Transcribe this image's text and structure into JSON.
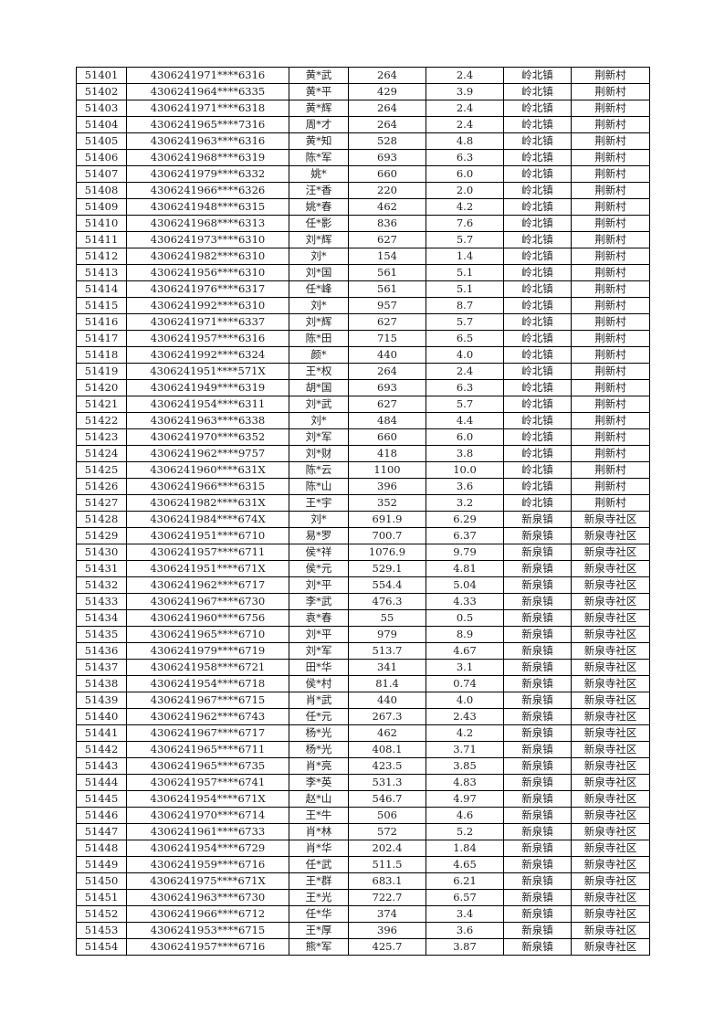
{
  "table": {
    "rows": [
      [
        "51401",
        "4306241971****6316",
        "黄*武",
        "264",
        "2.4",
        "岭北镇",
        "荆新村"
      ],
      [
        "51402",
        "4306241964****6335",
        "黄*平",
        "429",
        "3.9",
        "岭北镇",
        "荆新村"
      ],
      [
        "51403",
        "4306241971****6318",
        "黄*辉",
        "264",
        "2.4",
        "岭北镇",
        "荆新村"
      ],
      [
        "51404",
        "4306241965****7316",
        "周*才",
        "264",
        "2.4",
        "岭北镇",
        "荆新村"
      ],
      [
        "51405",
        "4306241963****6316",
        "黄*知",
        "528",
        "4.8",
        "岭北镇",
        "荆新村"
      ],
      [
        "51406",
        "4306241968****6319",
        "陈*军",
        "693",
        "6.3",
        "岭北镇",
        "荆新村"
      ],
      [
        "51407",
        "4306241979****6332",
        "姚*",
        "660",
        "6.0",
        "岭北镇",
        "荆新村"
      ],
      [
        "51408",
        "4306241966****6326",
        "汪*香",
        "220",
        "2.0",
        "岭北镇",
        "荆新村"
      ],
      [
        "51409",
        "4306241948****6315",
        "姚*春",
        "462",
        "4.2",
        "岭北镇",
        "荆新村"
      ],
      [
        "51410",
        "4306241968****6313",
        "任*影",
        "836",
        "7.6",
        "岭北镇",
        "荆新村"
      ],
      [
        "51411",
        "4306241973****6310",
        "刘*辉",
        "627",
        "5.7",
        "岭北镇",
        "荆新村"
      ],
      [
        "51412",
        "4306241982****6310",
        "刘*",
        "154",
        "1.4",
        "岭北镇",
        "荆新村"
      ],
      [
        "51413",
        "4306241956****6310",
        "刘*国",
        "561",
        "5.1",
        "岭北镇",
        "荆新村"
      ],
      [
        "51414",
        "4306241976****6317",
        "任*峰",
        "561",
        "5.1",
        "岭北镇",
        "荆新村"
      ],
      [
        "51415",
        "4306241992****6310",
        "刘*",
        "957",
        "8.7",
        "岭北镇",
        "荆新村"
      ],
      [
        "51416",
        "4306241971****6337",
        "刘*辉",
        "627",
        "5.7",
        "岭北镇",
        "荆新村"
      ],
      [
        "51417",
        "4306241957****6316",
        "陈*田",
        "715",
        "6.5",
        "岭北镇",
        "荆新村"
      ],
      [
        "51418",
        "4306241992****6324",
        "颜*",
        "440",
        "4.0",
        "岭北镇",
        "荆新村"
      ],
      [
        "51419",
        "4306241951****571X",
        "王*权",
        "264",
        "2.4",
        "岭北镇",
        "荆新村"
      ],
      [
        "51420",
        "4306241949****6319",
        "胡*国",
        "693",
        "6.3",
        "岭北镇",
        "荆新村"
      ],
      [
        "51421",
        "4306241954****6311",
        "刘*武",
        "627",
        "5.7",
        "岭北镇",
        "荆新村"
      ],
      [
        "51422",
        "4306241963****6338",
        "刘*",
        "484",
        "4.4",
        "岭北镇",
        "荆新村"
      ],
      [
        "51423",
        "4306241970****6352",
        "刘*军",
        "660",
        "6.0",
        "岭北镇",
        "荆新村"
      ],
      [
        "51424",
        "4306241962****9757",
        "刘*财",
        "418",
        "3.8",
        "岭北镇",
        "荆新村"
      ],
      [
        "51425",
        "4306241960****631X",
        "陈*云",
        "1100",
        "10.0",
        "岭北镇",
        "荆新村"
      ],
      [
        "51426",
        "4306241966****6315",
        "陈*山",
        "396",
        "3.6",
        "岭北镇",
        "荆新村"
      ],
      [
        "51427",
        "4306241982****631X",
        "王*宇",
        "352",
        "3.2",
        "岭北镇",
        "荆新村"
      ],
      [
        "51428",
        "4306241984****674X",
        "刘*",
        "691.9",
        "6.29",
        "新泉镇",
        "新泉寺社区"
      ],
      [
        "51429",
        "4306241951****6710",
        "易*罗",
        "700.7",
        "6.37",
        "新泉镇",
        "新泉寺社区"
      ],
      [
        "51430",
        "4306241957****6711",
        "侯*祥",
        "1076.9",
        "9.79",
        "新泉镇",
        "新泉寺社区"
      ],
      [
        "51431",
        "4306241951****671X",
        "侯*元",
        "529.1",
        "4.81",
        "新泉镇",
        "新泉寺社区"
      ],
      [
        "51432",
        "4306241962****6717",
        "刘*平",
        "554.4",
        "5.04",
        "新泉镇",
        "新泉寺社区"
      ],
      [
        "51433",
        "4306241967****6730",
        "李*武",
        "476.3",
        "4.33",
        "新泉镇",
        "新泉寺社区"
      ],
      [
        "51434",
        "4306241960****6756",
        "袁*春",
        "55",
        "0.5",
        "新泉镇",
        "新泉寺社区"
      ],
      [
        "51435",
        "4306241965****6710",
        "刘*平",
        "979",
        "8.9",
        "新泉镇",
        "新泉寺社区"
      ],
      [
        "51436",
        "4306241979****6719",
        "刘*军",
        "513.7",
        "4.67",
        "新泉镇",
        "新泉寺社区"
      ],
      [
        "51437",
        "4306241958****6721",
        "田*华",
        "341",
        "3.1",
        "新泉镇",
        "新泉寺社区"
      ],
      [
        "51438",
        "4306241954****6718",
        "侯*村",
        "81.4",
        "0.74",
        "新泉镇",
        "新泉寺社区"
      ],
      [
        "51439",
        "4306241967****6715",
        "肖*武",
        "440",
        "4.0",
        "新泉镇",
        "新泉寺社区"
      ],
      [
        "51440",
        "4306241962****6743",
        "任*元",
        "267.3",
        "2.43",
        "新泉镇",
        "新泉寺社区"
      ],
      [
        "51441",
        "4306241967****6717",
        "杨*光",
        "462",
        "4.2",
        "新泉镇",
        "新泉寺社区"
      ],
      [
        "51442",
        "4306241965****6711",
        "杨*光",
        "408.1",
        "3.71",
        "新泉镇",
        "新泉寺社区"
      ],
      [
        "51443",
        "4306241965****6735",
        "肖*亮",
        "423.5",
        "3.85",
        "新泉镇",
        "新泉寺社区"
      ],
      [
        "51444",
        "4306241957****6741",
        "李*英",
        "531.3",
        "4.83",
        "新泉镇",
        "新泉寺社区"
      ],
      [
        "51445",
        "4306241954****671X",
        "赵*山",
        "546.7",
        "4.97",
        "新泉镇",
        "新泉寺社区"
      ],
      [
        "51446",
        "4306241970****6714",
        "王*牛",
        "506",
        "4.6",
        "新泉镇",
        "新泉寺社区"
      ],
      [
        "51447",
        "4306241961****6733",
        "肖*林",
        "572",
        "5.2",
        "新泉镇",
        "新泉寺社区"
      ],
      [
        "51448",
        "4306241954****6729",
        "肖*华",
        "202.4",
        "1.84",
        "新泉镇",
        "新泉寺社区"
      ],
      [
        "51449",
        "4306241959****6716",
        "任*武",
        "511.5",
        "4.65",
        "新泉镇",
        "新泉寺社区"
      ],
      [
        "51450",
        "4306241975****671X",
        "王*群",
        "683.1",
        "6.21",
        "新泉镇",
        "新泉寺社区"
      ],
      [
        "51451",
        "4306241963****6730",
        "王*光",
        "722.7",
        "6.57",
        "新泉镇",
        "新泉寺社区"
      ],
      [
        "51452",
        "4306241966****6712",
        "任*华",
        "374",
        "3.4",
        "新泉镇",
        "新泉寺社区"
      ],
      [
        "51453",
        "4306241953****6715",
        "王*厚",
        "396",
        "3.6",
        "新泉镇",
        "新泉寺社区"
      ],
      [
        "51454",
        "4306241957****6716",
        "熊*军",
        "425.7",
        "3.87",
        "新泉镇",
        "新泉寺社区"
      ]
    ]
  }
}
